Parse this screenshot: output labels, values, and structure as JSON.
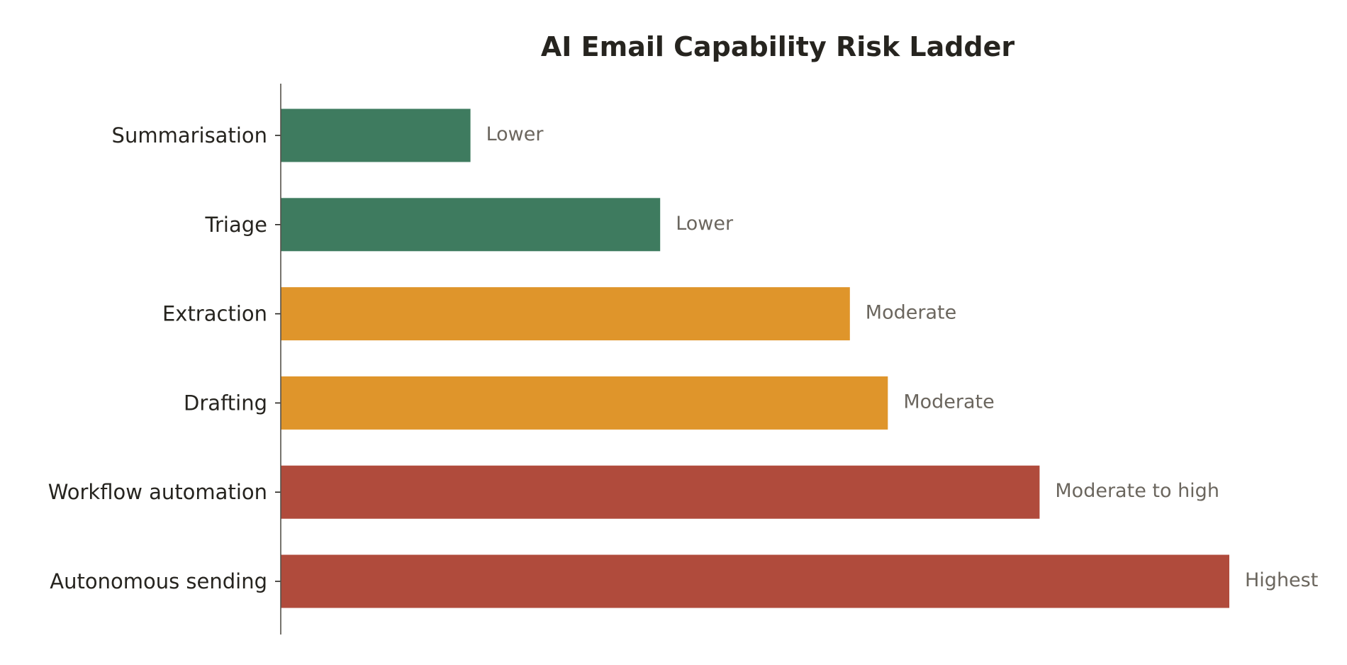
{
  "chart_data": {
    "type": "bar",
    "orientation": "horizontal",
    "title": "AI Email Capability Risk Ladder",
    "xlabel": "",
    "ylabel": "",
    "categories": [
      "Summarisation",
      "Triage",
      "Extraction",
      "Drafting",
      "Workflow automation",
      "Autonomous sending"
    ],
    "values": [
      1,
      2,
      3,
      3.2,
      4,
      5
    ],
    "xlim": [
      0,
      5
    ],
    "risk_labels": [
      "Lower",
      "Lower",
      "Moderate",
      "Moderate",
      "Moderate to high",
      "Highest"
    ],
    "bar_colors": [
      "#3e7b5f",
      "#3e7b5f",
      "#df952b",
      "#df952b",
      "#b04b3c",
      "#b04b3c"
    ],
    "grid": false,
    "legend": "none",
    "x_axis_visible": false
  }
}
